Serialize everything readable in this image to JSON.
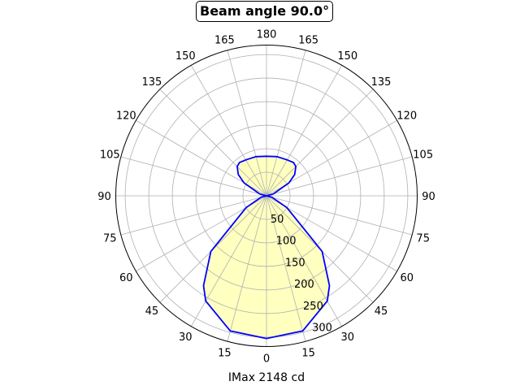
{
  "chart_data": {
    "type": "polar-line",
    "title": "Beam angle 90.0°",
    "xlabel": "IMax 2148 cd",
    "theta_zero": "bottom",
    "theta_tick_labels": [
      "0",
      "15",
      "30",
      "45",
      "60",
      "75",
      "90",
      "105",
      "120",
      "135",
      "150",
      "165",
      "180",
      "165",
      "150",
      "135",
      "120",
      "105",
      "90",
      "75",
      "60",
      "45",
      "30",
      "15"
    ],
    "r_ticks": [
      50,
      100,
      150,
      200,
      250,
      300
    ],
    "r_tick_labels": [
      "50",
      "100",
      "150",
      "200",
      "250",
      "300"
    ],
    "rlim": [
      0,
      320
    ],
    "grid": true,
    "symmetric": true,
    "series": [
      {
        "theta_deg": [
          0,
          15,
          30,
          35,
          45,
          60,
          75,
          90,
          105,
          120,
          127,
          135,
          141,
          150,
          165,
          180
        ],
        "r": [
          303,
          297,
          258,
          233,
          167,
          50,
          12,
          0,
          15,
          55,
          75,
          88,
          91,
          88,
          86,
          84
        ],
        "color": "#0000ff",
        "fill": "#ffffc0"
      }
    ]
  }
}
